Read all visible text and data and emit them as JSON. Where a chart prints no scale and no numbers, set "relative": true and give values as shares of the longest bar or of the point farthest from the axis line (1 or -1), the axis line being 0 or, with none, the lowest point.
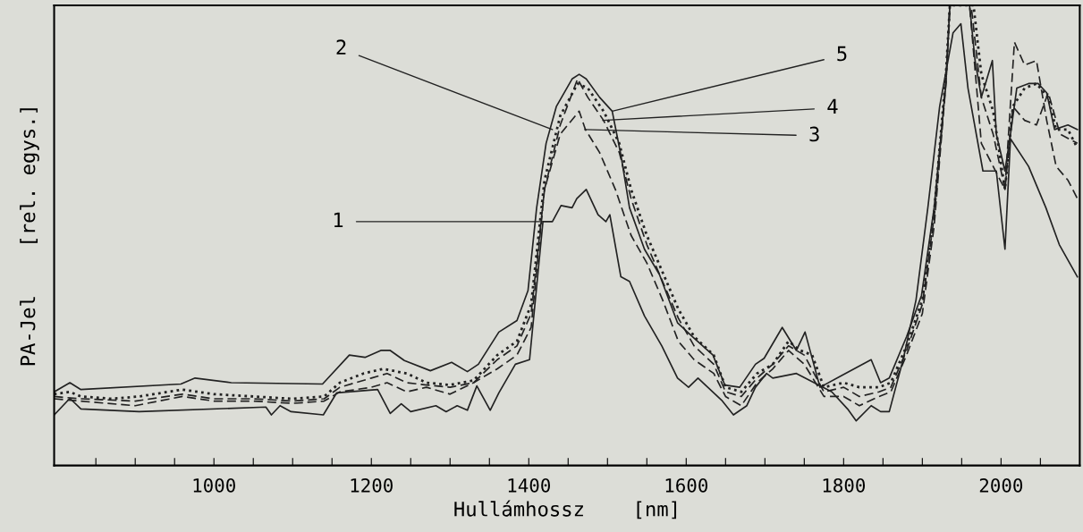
{
  "chart_data": {
    "type": "line",
    "relative": true,
    "xlabel": "Hullámhossz    [nm]",
    "ylabel": "PA-Jel    [rel. egys.]",
    "xlim": [
      797,
      2100
    ],
    "xticks": [
      {
        "value": 850,
        "label": null
      },
      {
        "value": 900,
        "label": null
      },
      {
        "value": 950,
        "label": null
      },
      1000,
      {
        "value": 1050,
        "label": null
      },
      {
        "value": 1100,
        "label": null
      },
      {
        "value": 1150,
        "label": null
      },
      1200,
      {
        "value": 1250,
        "label": null
      },
      {
        "value": 1300,
        "label": null
      },
      {
        "value": 1350,
        "label": null
      },
      1400,
      {
        "value": 1450,
        "label": null
      },
      {
        "value": 1500,
        "label": null
      },
      {
        "value": 1550,
        "label": null
      },
      1600,
      {
        "value": 1650,
        "label": null
      },
      {
        "value": 1700,
        "label": null
      },
      {
        "value": 1750,
        "label": null
      },
      1800,
      {
        "value": 1850,
        "label": null
      },
      {
        "value": 1900,
        "label": null
      },
      {
        "value": 1950,
        "label": null
      },
      2000,
      {
        "value": 2050,
        "label": null
      }
    ],
    "grid": false,
    "legend": false,
    "marker": "none",
    "series": [
      {
        "color": "#222222",
        "line_style": "solid",
        "x": [
          797,
          817,
          831,
          905,
          1066,
          1073,
          1084,
          1098,
          1139,
          1156,
          1208,
          1224,
          1238,
          1250,
          1282,
          1295,
          1309,
          1322,
          1334,
          1351,
          1362,
          1383,
          1401,
          1418,
          1430,
          1441,
          1455,
          1461,
          1473,
          1488,
          1498,
          1503,
          1517,
          1528,
          1547,
          1569,
          1589,
          1603,
          1615,
          1645,
          1660,
          1677,
          1688,
          1702,
          1710,
          1740,
          1785,
          1805,
          1816,
          1835,
          1847,
          1858,
          1876,
          1892,
          1907,
          1922,
          1939,
          1949,
          1958,
          1977,
          1994,
          2005,
          2012,
          2035,
          2057,
          2074,
          2097
        ],
        "values": [
          0.11,
          0.146,
          0.123,
          0.117,
          0.127,
          0.11,
          0.13,
          0.117,
          0.11,
          0.158,
          0.165,
          0.113,
          0.134,
          0.117,
          0.13,
          0.117,
          0.13,
          0.12,
          0.173,
          0.12,
          0.158,
          0.22,
          0.23,
          0.53,
          0.53,
          0.565,
          0.56,
          0.58,
          0.6,
          0.545,
          0.53,
          0.545,
          0.41,
          0.4,
          0.325,
          0.26,
          0.19,
          0.17,
          0.19,
          0.142,
          0.11,
          0.13,
          0.17,
          0.2,
          0.19,
          0.2,
          0.16,
          0.123,
          0.097,
          0.13,
          0.117,
          0.117,
          0.233,
          0.36,
          0.56,
          0.78,
          0.94,
          0.96,
          0.82,
          0.64,
          0.64,
          0.47,
          0.71,
          0.65,
          0.56,
          0.48,
          0.41
        ]
      },
      {
        "color": "#222222",
        "line_style": "dashed",
        "x": [
          797,
          830,
          900,
          960,
          1000,
          1050,
          1100,
          1140,
          1160,
          1200,
          1220,
          1245,
          1270,
          1300,
          1330,
          1360,
          1385,
          1403,
          1420,
          1440,
          1462,
          1475,
          1495,
          1515,
          1530,
          1550,
          1570,
          1590,
          1610,
          1635,
          1650,
          1670,
          1690,
          1710,
          1730,
          1750,
          1775,
          1800,
          1820,
          1845,
          1860,
          1880,
          1900,
          1915,
          1930,
          1935,
          1962,
          1975,
          1990,
          2005,
          2015,
          2030,
          2045,
          2060,
          2075,
          2097
        ],
        "values": [
          0.15,
          0.145,
          0.14,
          0.155,
          0.145,
          0.145,
          0.14,
          0.145,
          0.17,
          0.19,
          0.2,
          0.18,
          0.175,
          0.17,
          0.18,
          0.23,
          0.26,
          0.33,
          0.6,
          0.74,
          0.84,
          0.8,
          0.75,
          0.68,
          0.58,
          0.48,
          0.4,
          0.32,
          0.26,
          0.22,
          0.16,
          0.15,
          0.19,
          0.22,
          0.26,
          0.24,
          0.16,
          0.17,
          0.15,
          0.16,
          0.17,
          0.25,
          0.35,
          0.54,
          0.84,
          1.0,
          1.0,
          0.8,
          0.72,
          0.6,
          0.78,
          0.75,
          0.74,
          0.81,
          0.72,
          0.7
        ]
      },
      {
        "color": "#222222",
        "line_style": "dashed",
        "x": [
          797,
          830,
          900,
          960,
          1000,
          1050,
          1100,
          1140,
          1160,
          1200,
          1220,
          1245,
          1270,
          1300,
          1330,
          1360,
          1385,
          1403,
          1420,
          1440,
          1464,
          1472,
          1490,
          1510,
          1530,
          1550,
          1570,
          1590,
          1610,
          1635,
          1650,
          1670,
          1690,
          1710,
          1730,
          1750,
          1775,
          1800,
          1820,
          1845,
          1860,
          1880,
          1900,
          1915,
          1930,
          1935,
          1960,
          1975,
          1990,
          2005,
          2017,
          2030,
          2045,
          2058,
          2070,
          2085,
          2097
        ],
        "values": [
          0.145,
          0.14,
          0.13,
          0.15,
          0.14,
          0.14,
          0.135,
          0.14,
          0.16,
          0.17,
          0.18,
          0.16,
          0.17,
          0.155,
          0.18,
          0.21,
          0.24,
          0.3,
          0.6,
          0.72,
          0.77,
          0.73,
          0.68,
          0.6,
          0.5,
          0.44,
          0.36,
          0.27,
          0.23,
          0.2,
          0.15,
          0.13,
          0.18,
          0.21,
          0.25,
          0.22,
          0.15,
          0.15,
          0.13,
          0.15,
          0.16,
          0.24,
          0.33,
          0.52,
          0.83,
          1.0,
          1.0,
          0.7,
          0.65,
          0.6,
          0.92,
          0.87,
          0.88,
          0.75,
          0.65,
          0.62,
          0.58
        ]
      },
      {
        "color": "#222222",
        "line_style": "dotted",
        "x": [
          797,
          817,
          831,
          870,
          905,
          960,
          1000,
          1050,
          1100,
          1140,
          1160,
          1190,
          1215,
          1245,
          1270,
          1300,
          1330,
          1360,
          1385,
          1403,
          1420,
          1440,
          1462,
          1475,
          1495,
          1515,
          1530,
          1550,
          1570,
          1590,
          1610,
          1635,
          1650,
          1670,
          1690,
          1710,
          1730,
          1745,
          1760,
          1775,
          1800,
          1820,
          1845,
          1860,
          1880,
          1900,
          1915,
          1930,
          1935,
          1965,
          1975,
          1990,
          2005,
          2015,
          2030,
          2045,
          2060,
          2070,
          2085,
          2097
        ],
        "values": [
          0.155,
          0.16,
          0.15,
          0.145,
          0.15,
          0.165,
          0.155,
          0.15,
          0.145,
          0.15,
          0.18,
          0.2,
          0.21,
          0.2,
          0.18,
          0.175,
          0.185,
          0.24,
          0.27,
          0.35,
          0.62,
          0.76,
          0.83,
          0.82,
          0.77,
          0.7,
          0.6,
          0.5,
          0.42,
          0.34,
          0.28,
          0.24,
          0.17,
          0.16,
          0.2,
          0.22,
          0.27,
          0.25,
          0.24,
          0.17,
          0.18,
          0.17,
          0.17,
          0.18,
          0.26,
          0.36,
          0.55,
          0.85,
          1.0,
          1.0,
          0.85,
          0.77,
          0.6,
          0.78,
          0.82,
          0.83,
          0.8,
          0.73,
          0.73,
          0.69
        ]
      },
      {
        "color": "#222222",
        "line_style": "solid",
        "x": [
          797,
          817,
          831,
          958,
          976,
          1022,
          1138,
          1172,
          1192,
          1212,
          1224,
          1242,
          1275,
          1302,
          1322,
          1336,
          1362,
          1385,
          1399,
          1410,
          1422,
          1435,
          1455,
          1464,
          1473,
          1490,
          1506,
          1517,
          1528,
          1547,
          1566,
          1589,
          1608,
          1634,
          1649,
          1668,
          1688,
          1699,
          1722,
          1740,
          1751,
          1770,
          1797,
          1835,
          1847,
          1858,
          1880,
          1899,
          1915,
          1930,
          1935,
          1960,
          1967,
          1975,
          1989,
          1994,
          2005,
          2012,
          2020,
          2035,
          2047,
          2058,
          2068,
          2085,
          2097
        ],
        "values": [
          0.16,
          0.18,
          0.165,
          0.177,
          0.19,
          0.18,
          0.177,
          0.24,
          0.235,
          0.25,
          0.25,
          0.228,
          0.206,
          0.224,
          0.204,
          0.22,
          0.29,
          0.315,
          0.38,
          0.56,
          0.7,
          0.78,
          0.84,
          0.85,
          0.84,
          0.8,
          0.77,
          0.675,
          0.56,
          0.47,
          0.415,
          0.31,
          0.28,
          0.24,
          0.175,
          0.17,
          0.22,
          0.233,
          0.3,
          0.25,
          0.29,
          0.17,
          0.195,
          0.23,
          0.18,
          0.19,
          0.28,
          0.37,
          0.56,
          0.83,
          1.0,
          1.0,
          0.88,
          0.8,
          0.88,
          0.72,
          0.64,
          0.72,
          0.82,
          0.83,
          0.83,
          0.81,
          0.73,
          0.74,
          0.73
        ]
      }
    ],
    "annotations": [
      {
        "text": "1",
        "x": 1418,
        "y": 0.53
      },
      {
        "text": "2",
        "x": 1430,
        "y": 0.73
      },
      {
        "text": "3",
        "x": 1471,
        "y": 0.73
      },
      {
        "text": "4",
        "x": 1494,
        "y": 0.75
      },
      {
        "text": "5",
        "x": 1506,
        "y": 0.77
      }
    ]
  }
}
